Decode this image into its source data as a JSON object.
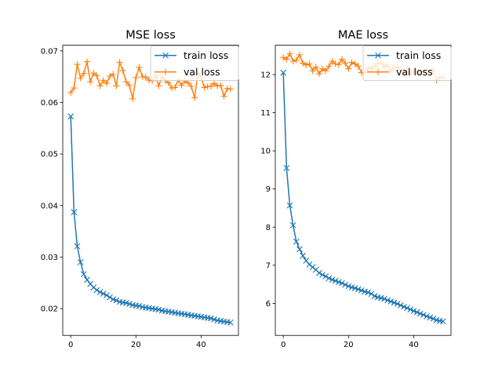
{
  "colors": {
    "train": "#1f77b4",
    "val": "#ff7f0e"
  },
  "chart_data": [
    {
      "type": "line",
      "title": "MSE loss",
      "xlabel": "",
      "ylabel": "",
      "xlim": [
        -2.45,
        51.45
      ],
      "ylim": [
        0.0148,
        0.0711
      ],
      "xticks": [
        0,
        20,
        40
      ],
      "xtick_labels": [
        "0",
        "20",
        "40"
      ],
      "yticks": [
        0.02,
        0.03,
        0.04,
        0.05,
        0.06,
        0.07
      ],
      "ytick_labels": [
        "0.02",
        "0.03",
        "0.04",
        "0.05",
        "0.06",
        "0.07"
      ],
      "legend_loc": "upper right",
      "x": [
        0,
        1,
        2,
        3,
        4,
        5,
        6,
        7,
        8,
        9,
        10,
        11,
        12,
        13,
        14,
        15,
        16,
        17,
        18,
        19,
        20,
        21,
        22,
        23,
        24,
        25,
        26,
        27,
        28,
        29,
        30,
        31,
        32,
        33,
        34,
        35,
        36,
        37,
        38,
        39,
        40,
        41,
        42,
        43,
        44,
        45,
        46,
        47,
        48,
        49
      ],
      "series": [
        {
          "name": "train loss",
          "marker": "x",
          "values": [
            0.0573,
            0.0387,
            0.0321,
            0.029,
            0.0267,
            0.0256,
            0.0248,
            0.0241,
            0.0236,
            0.0232,
            0.0229,
            0.0226,
            0.0222,
            0.0218,
            0.0216,
            0.0213,
            0.0212,
            0.0211,
            0.0209,
            0.0207,
            0.0206,
            0.0205,
            0.0203,
            0.0202,
            0.0201,
            0.02,
            0.0199,
            0.0198,
            0.0196,
            0.0195,
            0.0194,
            0.0193,
            0.0192,
            0.0191,
            0.019,
            0.0189,
            0.0188,
            0.0187,
            0.0186,
            0.0185,
            0.0184,
            0.0183,
            0.0182,
            0.0181,
            0.0179,
            0.0177,
            0.0176,
            0.0175,
            0.0174,
            0.0173
          ]
        },
        {
          "name": "val loss",
          "marker": "+",
          "values": [
            0.0619,
            0.0628,
            0.0674,
            0.0647,
            0.0656,
            0.0679,
            0.064,
            0.0657,
            0.0652,
            0.0632,
            0.0643,
            0.0637,
            0.0651,
            0.0655,
            0.0632,
            0.0678,
            0.0662,
            0.064,
            0.0633,
            0.0607,
            0.0648,
            0.0668,
            0.065,
            0.0649,
            0.0643,
            0.0642,
            0.0652,
            0.0632,
            0.065,
            0.0643,
            0.0638,
            0.0628,
            0.0629,
            0.0644,
            0.0633,
            0.0642,
            0.0638,
            0.0631,
            0.0609,
            0.0656,
            0.0648,
            0.0629,
            0.0631,
            0.0631,
            0.0637,
            0.0632,
            0.0633,
            0.0612,
            0.0627,
            0.0626
          ]
        }
      ]
    },
    {
      "type": "line",
      "title": "MAE loss",
      "xlabel": "",
      "ylabel": "",
      "xlim": [
        -2.45,
        51.45
      ],
      "ylim": [
        5.16,
        12.77
      ],
      "xticks": [
        0,
        20,
        40
      ],
      "xtick_labels": [
        "0",
        "20",
        "40"
      ],
      "yticks": [
        6,
        7,
        8,
        9,
        10,
        11,
        12
      ],
      "ytick_labels": [
        "6",
        "7",
        "8",
        "9",
        "10",
        "11",
        "12"
      ],
      "legend_loc": "upper right",
      "x": [
        0,
        1,
        2,
        3,
        4,
        5,
        6,
        7,
        8,
        9,
        10,
        11,
        12,
        13,
        14,
        15,
        16,
        17,
        18,
        19,
        20,
        21,
        22,
        23,
        24,
        25,
        26,
        27,
        28,
        29,
        30,
        31,
        32,
        33,
        34,
        35,
        36,
        37,
        38,
        39,
        40,
        41,
        42,
        43,
        44,
        45,
        46,
        47,
        48,
        49
      ],
      "series": [
        {
          "name": "train loss",
          "marker": "x",
          "values": [
            12.05,
            9.55,
            8.57,
            8.05,
            7.62,
            7.42,
            7.25,
            7.12,
            7.02,
            6.95,
            6.88,
            6.8,
            6.75,
            6.71,
            6.66,
            6.62,
            6.59,
            6.56,
            6.53,
            6.49,
            6.45,
            6.42,
            6.4,
            6.37,
            6.34,
            6.31,
            6.29,
            6.25,
            6.19,
            6.16,
            6.14,
            6.12,
            6.08,
            6.05,
            6.02,
            5.99,
            5.95,
            5.91,
            5.88,
            5.84,
            5.8,
            5.77,
            5.73,
            5.7,
            5.66,
            5.63,
            5.6,
            5.56,
            5.54,
            5.53
          ]
        },
        {
          "name": "val loss",
          "marker": "+",
          "values": [
            12.45,
            12.4,
            12.55,
            12.35,
            12.38,
            12.52,
            12.3,
            12.25,
            12.28,
            12.1,
            12.2,
            12.02,
            12.15,
            12.1,
            12.22,
            12.35,
            12.28,
            12.26,
            12.4,
            12.3,
            12.15,
            12.32,
            12.28,
            12.22,
            12.05,
            12.05,
            12.18,
            12.15,
            12.22,
            12.3,
            12.32,
            12.2,
            12.25,
            12.1,
            12.18,
            12.2,
            12.12,
            12.0,
            12.08,
            12.02,
            12.1,
            12.03,
            12.08,
            12.05,
            12.1,
            12.08,
            12.12,
            11.85,
            11.93,
            11.93
          ]
        }
      ]
    }
  ]
}
